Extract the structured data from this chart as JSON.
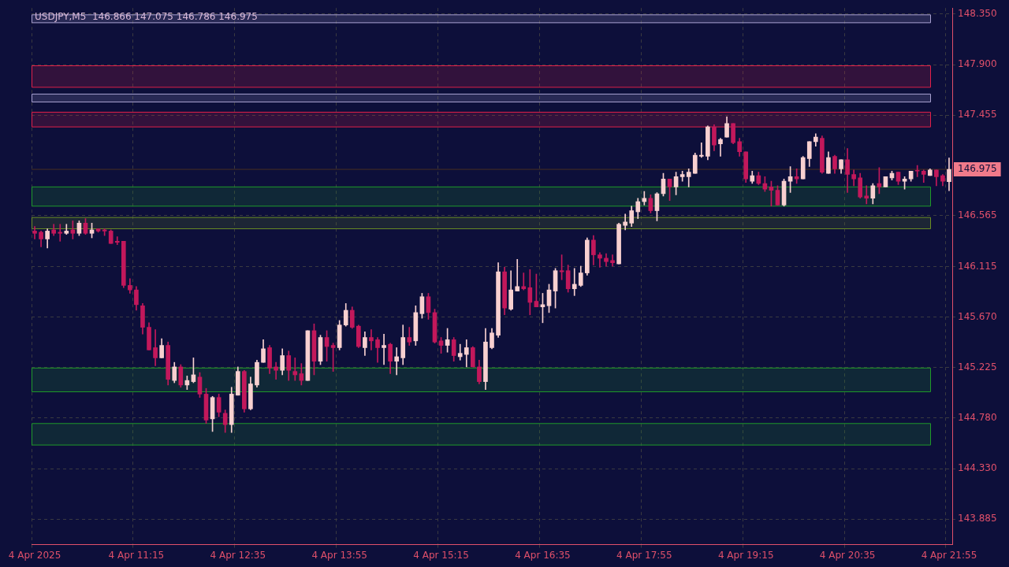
{
  "chart_data": {
    "type": "candlestick",
    "title": "USDJPY,M5  146.866 147.075 146.786 146.975",
    "categories": [
      "4 Apr 2025",
      null,
      null,
      null,
      null,
      null,
      null,
      null,
      null,
      null,
      null,
      null,
      null,
      null,
      null,
      null,
      "4 Apr 11:15",
      null,
      null,
      null,
      null,
      null,
      null,
      null,
      null,
      null,
      null,
      null,
      null,
      null,
      null,
      null,
      "4 Apr 12:35",
      null,
      null,
      null,
      null,
      null,
      null,
      null,
      null,
      null,
      null,
      null,
      null,
      null,
      null,
      null,
      "4 Apr 13:55",
      null,
      null,
      null,
      null,
      null,
      null,
      null,
      null,
      null,
      null,
      null,
      null,
      null,
      null,
      null,
      "4 Apr 15:15",
      null,
      null,
      null,
      null,
      null,
      null,
      null,
      null,
      null,
      null,
      null,
      null,
      null,
      null,
      null,
      "4 Apr 16:35",
      null,
      null,
      null,
      null,
      null,
      null,
      null,
      null,
      null,
      null,
      null,
      null,
      null,
      null,
      null,
      "4 Apr 17:55",
      null,
      null,
      null,
      null,
      null,
      null,
      null,
      null,
      null,
      null,
      null,
      null,
      null,
      null,
      null,
      "4 Apr 19:15",
      null,
      null,
      null,
      null,
      null,
      null,
      null,
      null,
      null,
      null,
      null,
      null,
      null,
      null,
      null,
      "4 Apr 20:35",
      null,
      null,
      null,
      null,
      null,
      null,
      null,
      null,
      null,
      null,
      null,
      null,
      null,
      null,
      null,
      "4 Apr 21:55"
    ],
    "ohlc": [
      [
        146.43,
        146.47,
        146.36,
        146.41
      ],
      [
        146.42,
        146.43,
        146.29,
        146.36
      ],
      [
        146.36,
        146.45,
        146.28,
        146.43
      ],
      [
        146.44,
        146.49,
        146.39,
        146.41
      ],
      [
        146.42,
        146.49,
        146.34,
        146.41
      ],
      [
        146.41,
        146.49,
        146.4,
        146.43
      ],
      [
        146.44,
        146.52,
        146.36,
        146.41
      ],
      [
        146.41,
        146.52,
        146.39,
        146.5
      ],
      [
        146.5,
        146.54,
        146.4,
        146.41
      ],
      [
        146.41,
        146.5,
        146.37,
        146.44
      ],
      [
        146.45,
        146.45,
        146.42,
        146.43
      ],
      [
        146.44,
        146.45,
        146.39,
        146.43
      ],
      [
        146.43,
        146.44,
        146.32,
        146.32
      ],
      [
        146.34,
        146.38,
        146.31,
        146.33
      ],
      [
        146.34,
        146.34,
        145.93,
        145.95
      ],
      [
        145.95,
        146.01,
        145.88,
        145.91
      ],
      [
        145.91,
        145.94,
        145.73,
        145.78
      ],
      [
        145.77,
        145.79,
        145.52,
        145.58
      ],
      [
        145.58,
        145.62,
        145.38,
        145.38
      ],
      [
        145.4,
        145.56,
        145.24,
        145.31
      ],
      [
        145.31,
        145.48,
        145.31,
        145.42
      ],
      [
        145.42,
        145.45,
        145.07,
        145.12
      ],
      [
        145.11,
        145.27,
        145.09,
        145.23
      ],
      [
        145.23,
        145.25,
        145.05,
        145.07
      ],
      [
        145.07,
        145.15,
        145.03,
        145.11
      ],
      [
        145.1,
        145.31,
        145.09,
        145.16
      ],
      [
        145.14,
        145.18,
        144.96,
        144.99
      ],
      [
        144.99,
        145.04,
        144.73,
        144.76
      ],
      [
        144.77,
        144.97,
        144.66,
        144.96
      ],
      [
        144.96,
        144.99,
        144.79,
        144.83
      ],
      [
        144.82,
        144.85,
        144.65,
        144.72
      ],
      [
        144.72,
        145.05,
        144.65,
        144.99
      ],
      [
        144.98,
        145.23,
        144.98,
        145.19
      ],
      [
        145.19,
        145.2,
        144.83,
        144.86
      ],
      [
        144.86,
        145.14,
        144.85,
        145.08
      ],
      [
        145.07,
        145.29,
        145.05,
        145.27
      ],
      [
        145.27,
        145.47,
        145.27,
        145.39
      ],
      [
        145.4,
        145.42,
        145.17,
        145.22
      ],
      [
        145.23,
        145.27,
        145.12,
        145.2
      ],
      [
        145.2,
        145.39,
        145.16,
        145.33
      ],
      [
        145.33,
        145.37,
        145.11,
        145.2
      ],
      [
        145.19,
        145.31,
        145.11,
        145.16
      ],
      [
        145.17,
        145.26,
        145.07,
        145.11
      ],
      [
        145.11,
        145.55,
        145.11,
        145.55
      ],
      [
        145.55,
        145.61,
        145.16,
        145.28
      ],
      [
        145.28,
        145.51,
        145.25,
        145.49
      ],
      [
        145.49,
        145.55,
        145.28,
        145.41
      ],
      [
        145.42,
        145.44,
        145.19,
        145.4
      ],
      [
        145.4,
        145.64,
        145.38,
        145.6
      ],
      [
        145.6,
        145.79,
        145.59,
        145.73
      ],
      [
        145.73,
        145.76,
        145.57,
        145.58
      ],
      [
        145.59,
        145.6,
        145.4,
        145.41
      ],
      [
        145.4,
        145.54,
        145.33,
        145.49
      ],
      [
        145.49,
        145.56,
        145.38,
        145.46
      ],
      [
        145.47,
        145.49,
        145.27,
        145.4
      ],
      [
        145.4,
        145.52,
        145.25,
        145.42
      ],
      [
        145.43,
        145.44,
        145.17,
        145.28
      ],
      [
        145.28,
        145.4,
        145.16,
        145.32
      ],
      [
        145.31,
        145.6,
        145.25,
        145.49
      ],
      [
        145.49,
        145.58,
        145.42,
        145.45
      ],
      [
        145.46,
        145.77,
        145.42,
        145.71
      ],
      [
        145.7,
        145.88,
        145.66,
        145.85
      ],
      [
        145.85,
        145.88,
        145.65,
        145.71
      ],
      [
        145.71,
        145.74,
        145.44,
        145.45
      ],
      [
        145.46,
        145.49,
        145.35,
        145.42
      ],
      [
        145.42,
        145.57,
        145.36,
        145.47
      ],
      [
        145.47,
        145.49,
        145.28,
        145.33
      ],
      [
        145.32,
        145.43,
        145.29,
        145.35
      ],
      [
        145.34,
        145.47,
        145.23,
        145.4
      ],
      [
        145.4,
        145.41,
        145.23,
        145.23
      ],
      [
        145.23,
        145.29,
        145.08,
        145.1
      ],
      [
        145.1,
        145.57,
        145.03,
        145.45
      ],
      [
        145.4,
        145.57,
        145.39,
        145.53
      ],
      [
        145.51,
        146.15,
        145.49,
        146.07
      ],
      [
        146.07,
        146.11,
        145.69,
        145.75
      ],
      [
        145.74,
        146.08,
        145.73,
        145.91
      ],
      [
        145.9,
        146.18,
        145.9,
        145.94
      ],
      [
        145.94,
        146.06,
        145.91,
        145.92
      ],
      [
        145.93,
        146.09,
        145.69,
        145.8
      ],
      [
        145.81,
        146.05,
        145.76,
        145.76
      ],
      [
        145.76,
        145.88,
        145.62,
        145.78
      ],
      [
        145.77,
        145.96,
        145.71,
        145.91
      ],
      [
        145.9,
        146.1,
        145.75,
        146.08
      ],
      [
        146.08,
        146.22,
        146.0,
        146.07
      ],
      [
        146.08,
        146.13,
        145.89,
        145.92
      ],
      [
        145.92,
        146.1,
        145.86,
        145.96
      ],
      [
        145.95,
        146.12,
        145.94,
        146.06
      ],
      [
        146.06,
        146.37,
        146.04,
        146.35
      ],
      [
        146.35,
        146.39,
        146.13,
        146.22
      ],
      [
        146.22,
        146.24,
        146.11,
        146.19
      ],
      [
        146.19,
        146.23,
        146.12,
        146.16
      ],
      [
        146.17,
        146.22,
        146.12,
        146.15
      ],
      [
        146.14,
        146.5,
        146.14,
        146.49
      ],
      [
        146.48,
        146.58,
        146.44,
        146.51
      ],
      [
        146.5,
        146.65,
        146.47,
        146.61
      ],
      [
        146.6,
        146.72,
        146.54,
        146.69
      ],
      [
        146.69,
        146.78,
        146.66,
        146.72
      ],
      [
        146.72,
        146.75,
        146.59,
        146.61
      ],
      [
        146.61,
        146.77,
        146.52,
        146.76
      ],
      [
        146.76,
        146.94,
        146.74,
        146.89
      ],
      [
        146.89,
        146.89,
        146.7,
        146.82
      ],
      [
        146.82,
        146.95,
        146.75,
        146.91
      ],
      [
        146.91,
        146.96,
        146.87,
        146.93
      ],
      [
        146.91,
        146.98,
        146.82,
        146.95
      ],
      [
        146.94,
        147.12,
        146.94,
        147.1
      ],
      [
        147.09,
        147.21,
        147.08,
        147.1
      ],
      [
        147.09,
        147.36,
        147.06,
        147.35
      ],
      [
        147.35,
        147.37,
        147.14,
        147.19
      ],
      [
        147.2,
        147.25,
        147.09,
        147.24
      ],
      [
        147.26,
        147.44,
        147.26,
        147.38
      ],
      [
        147.38,
        147.38,
        147.2,
        147.21
      ],
      [
        147.22,
        147.25,
        147.09,
        147.13
      ],
      [
        147.13,
        147.13,
        146.86,
        146.89
      ],
      [
        146.87,
        146.96,
        146.85,
        146.92
      ],
      [
        146.92,
        146.95,
        146.84,
        146.85
      ],
      [
        146.85,
        146.91,
        146.78,
        146.8
      ],
      [
        146.82,
        146.87,
        146.65,
        146.79
      ],
      [
        146.79,
        146.83,
        146.66,
        146.66
      ],
      [
        146.66,
        146.89,
        146.65,
        146.87
      ],
      [
        146.87,
        147.0,
        146.77,
        146.91
      ],
      [
        146.91,
        146.98,
        146.85,
        146.89
      ],
      [
        146.89,
        147.09,
        146.89,
        147.08
      ],
      [
        147.07,
        147.22,
        147.0,
        147.22
      ],
      [
        147.22,
        147.29,
        147.18,
        147.26
      ],
      [
        147.25,
        147.27,
        146.94,
        146.95
      ],
      [
        146.94,
        147.13,
        146.94,
        147.08
      ],
      [
        147.09,
        147.1,
        146.94,
        146.98
      ],
      [
        146.98,
        147.06,
        146.94,
        147.06
      ],
      [
        147.06,
        147.16,
        146.77,
        146.93
      ],
      [
        146.93,
        146.97,
        146.83,
        146.89
      ],
      [
        146.9,
        146.94,
        146.72,
        146.73
      ],
      [
        146.74,
        146.83,
        146.67,
        146.72
      ],
      [
        146.72,
        146.85,
        146.67,
        146.83
      ],
      [
        146.85,
        146.99,
        146.76,
        146.82
      ],
      [
        146.82,
        146.91,
        146.82,
        146.91
      ],
      [
        146.9,
        146.96,
        146.88,
        146.94
      ],
      [
        146.95,
        146.95,
        146.84,
        146.87
      ],
      [
        146.87,
        146.91,
        146.8,
        146.89
      ],
      [
        146.89,
        146.96,
        146.87,
        146.96
      ],
      [
        146.96,
        147.01,
        146.91,
        146.96
      ],
      [
        146.96,
        146.97,
        146.86,
        146.93
      ],
      [
        146.92,
        146.98,
        146.92,
        146.97
      ],
      [
        146.97,
        146.97,
        146.83,
        146.91
      ],
      [
        146.92,
        146.93,
        146.83,
        146.87
      ],
      [
        146.866,
        147.075,
        146.786,
        146.975
      ]
    ],
    "colors": [
      "#c2185b",
      "#c2185b",
      "#f8d0d0",
      "#c2185b",
      "#c2185b",
      "#f8d0d0",
      "#c2185b",
      "#f8d0d0",
      "#c2185b",
      "#f8d0d0",
      "#c2185b",
      "#c2185b",
      "#c2185b",
      "#c2185b",
      "#c2185b",
      "#c2185b",
      "#c2185b",
      "#c2185b",
      "#c2185b",
      "#c2185b",
      "#f8d0d0",
      "#c2185b",
      "#f8d0d0",
      "#c2185b",
      "#f8d0d0",
      "#f8d0d0",
      "#c2185b",
      "#c2185b",
      "#f8d0d0",
      "#c2185b",
      "#c2185b",
      "#f8d0d0",
      "#f8d0d0",
      "#c2185b",
      "#f8d0d0",
      "#f8d0d0",
      "#f8d0d0",
      "#c2185b",
      "#c2185b",
      "#f8d0d0",
      "#c2185b",
      "#c2185b",
      "#c2185b",
      "#f8d0d0",
      "#c2185b",
      "#f8d0d0",
      "#c2185b",
      "#c2185b",
      "#f8d0d0",
      "#f8d0d0",
      "#c2185b",
      "#c2185b",
      "#f8d0d0",
      "#c2185b",
      "#c2185b",
      "#f8d0d0",
      "#c2185b",
      "#f8d0d0",
      "#f8d0d0",
      "#c2185b",
      "#f8d0d0",
      "#f8d0d0",
      "#c2185b",
      "#c2185b",
      "#c2185b",
      "#f8d0d0",
      "#c2185b",
      "#f8d0d0",
      "#f8d0d0",
      "#c2185b",
      "#c2185b",
      "#f8d0d0",
      "#f8d0d0",
      "#f8d0d0",
      "#c2185b",
      "#f8d0d0",
      "#f8d0d0",
      "#c2185b",
      "#c2185b",
      "#c2185b",
      "#f8d0d0",
      "#f8d0d0",
      "#f8d0d0",
      "#c2185b",
      "#c2185b",
      "#f8d0d0",
      "#f8d0d0",
      "#f8d0d0",
      "#c2185b",
      "#c2185b",
      "#c2185b",
      "#c2185b",
      "#f8d0d0",
      "#f8d0d0",
      "#f8d0d0",
      "#f8d0d0",
      "#f8d0d0",
      "#c2185b",
      "#f8d0d0",
      "#f8d0d0",
      "#c2185b",
      "#f8d0d0",
      "#f8d0d0",
      "#f8d0d0",
      "#f8d0d0",
      "#f8d0d0",
      "#f8d0d0",
      "#c2185b",
      "#f8d0d0",
      "#f8d0d0",
      "#c2185b",
      "#c2185b",
      "#c2185b",
      "#f8d0d0",
      "#c2185b",
      "#c2185b",
      "#c2185b",
      "#c2185b",
      "#f8d0d0",
      "#f8d0d0",
      "#c2185b",
      "#f8d0d0",
      "#f8d0d0",
      "#f8d0d0",
      "#c2185b",
      "#f8d0d0",
      "#c2185b",
      "#f8d0d0",
      "#c2185b",
      "#c2185b",
      "#c2185b",
      "#c2185b",
      "#f8d0d0",
      "#c2185b",
      "#f8d0d0",
      "#f8d0d0",
      "#c2185b",
      "#f8d0d0",
      "#f8d0d0",
      "#c2185b",
      "#c2185b",
      "#f8d0d0",
      "#c2185b",
      "#c2185b",
      "#f8d0d0"
    ],
    "ylim": [
      143.66,
      148.4
    ],
    "yticks": [
      {
        "value": 148.35,
        "label": "148.350"
      },
      {
        "value": 147.9,
        "label": "147.900"
      },
      147.455,
      146.565,
      146.115,
      {
        "value": 145.67,
        "label": "145.670"
      },
      145.225,
      {
        "value": 144.78,
        "label": "144.780"
      },
      {
        "value": 144.33,
        "label": "144.330"
      },
      143.885
    ],
    "grid": true,
    "bands": [
      {
        "axis": "y",
        "from": 148.27,
        "to": 148.34,
        "color": "#a8a0d0"
      },
      {
        "axis": "y",
        "from": 147.7,
        "to": 147.89,
        "color": "#e0204a"
      },
      {
        "axis": "y",
        "from": 147.57,
        "to": 147.64,
        "color": "#a8a0d0"
      },
      {
        "axis": "y",
        "from": 147.35,
        "to": 147.48,
        "color": "#e0204a"
      },
      {
        "axis": "y",
        "from": 146.65,
        "to": 146.82,
        "color": "#1f9a2a"
      },
      {
        "axis": "y",
        "from": 146.45,
        "to": 146.55,
        "color": "#6b8e23"
      },
      {
        "axis": "y",
        "from": 145.01,
        "to": 145.22,
        "color": "#1f9a2a"
      },
      {
        "axis": "y",
        "from": 144.54,
        "to": 144.73,
        "color": "#1f9a2a"
      }
    ],
    "ref_lines": [
      {
        "axis": "y",
        "value": 146.975,
        "label": "146.975",
        "color": "#4a3020"
      }
    ]
  }
}
